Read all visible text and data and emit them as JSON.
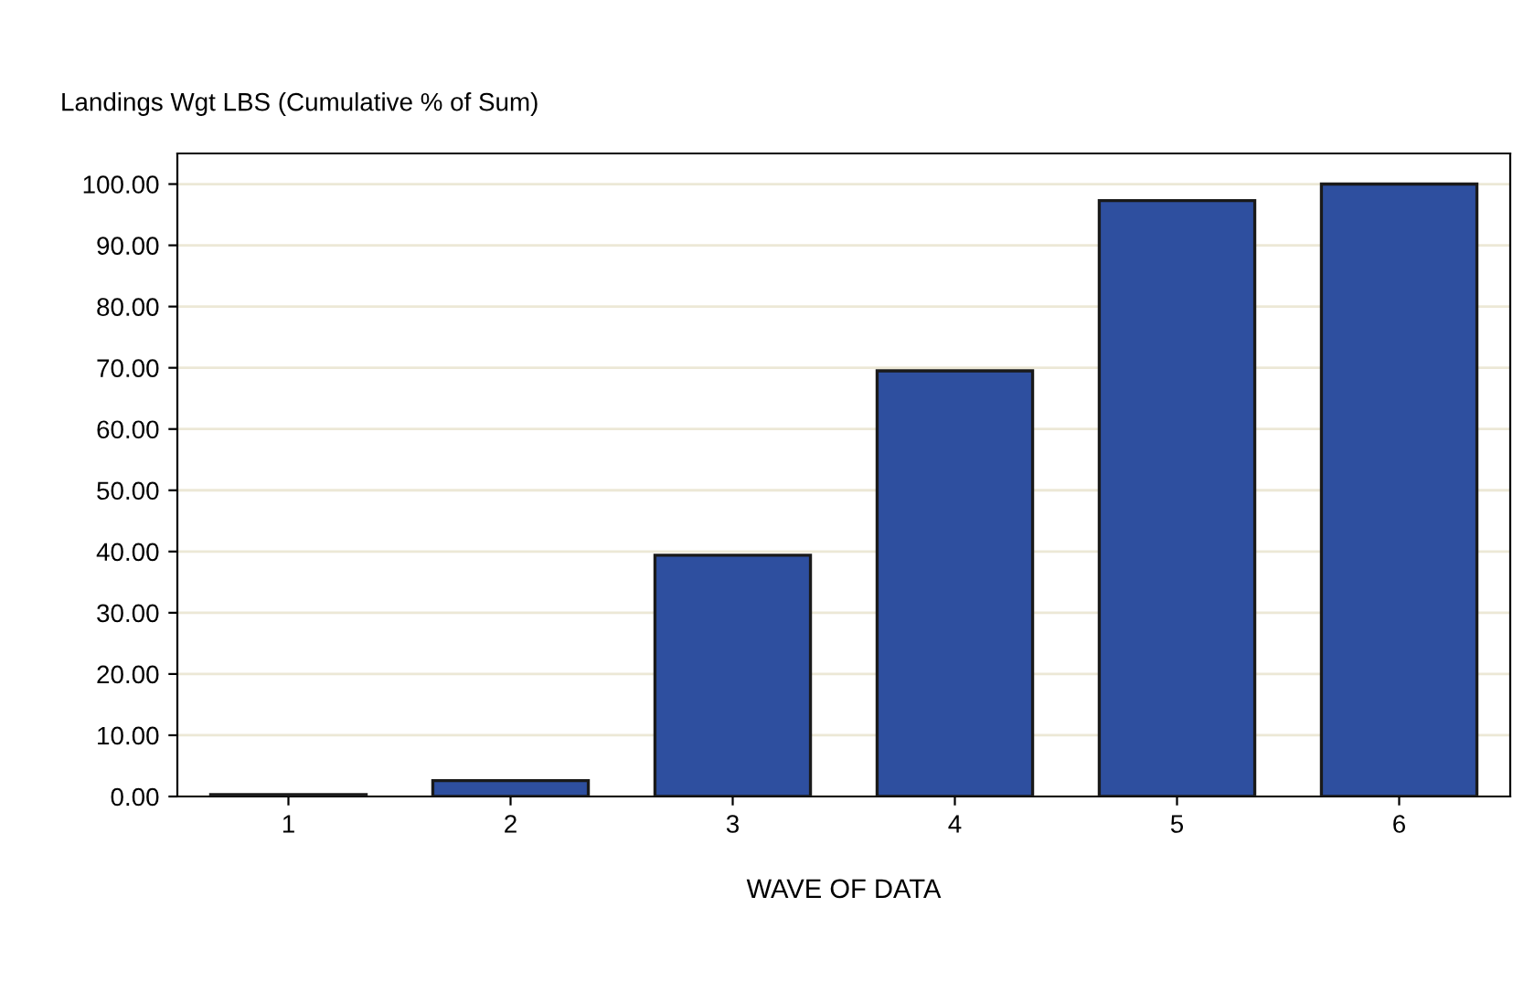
{
  "chart_data": {
    "type": "bar",
    "title": "Landings Wgt LBS (Cumulative % of Sum)",
    "xlabel": "WAVE OF DATA",
    "categories": [
      "1",
      "2",
      "3",
      "4",
      "5",
      "6"
    ],
    "values": [
      0.3,
      2.6,
      39.4,
      69.5,
      97.3,
      100
    ],
    "color": "#2e4f9f",
    "ylim": [
      0,
      105
    ],
    "yticks": [
      {
        "value": 0,
        "label": "0.00"
      },
      {
        "value": 10,
        "label": "10.00"
      },
      {
        "value": 20,
        "label": "20.00"
      },
      {
        "value": 30,
        "label": "30.00"
      },
      {
        "value": 40,
        "label": "40.00"
      },
      {
        "value": 50,
        "label": "50.00"
      },
      {
        "value": 60,
        "label": "60.00"
      },
      {
        "value": 70,
        "label": "70.00"
      },
      {
        "value": 80,
        "label": "80.00"
      },
      {
        "value": 90,
        "label": "90.00"
      },
      {
        "value": 100,
        "label": "100.00"
      }
    ],
    "grid": "y"
  }
}
